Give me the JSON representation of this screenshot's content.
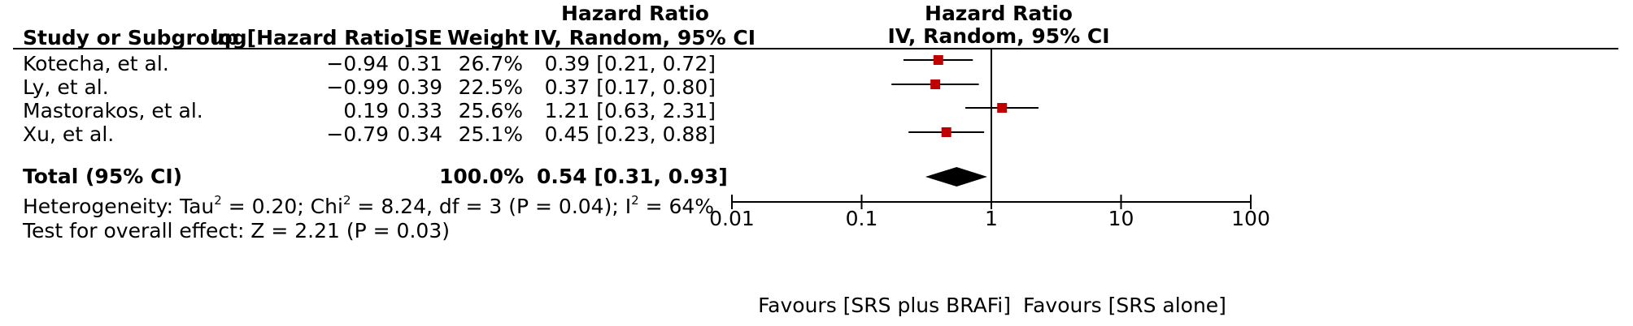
{
  "table": {
    "header_group": "Hazard Ratio",
    "columns": [
      "Study or Subgroup",
      "log[Hazard Ratio]",
      "SE",
      "Weight",
      "IV, Random, 95% CI"
    ],
    "rows": [
      {
        "study": "Kotecha, et al.",
        "loghr": "−0.94",
        "se": "0.31",
        "weight": "26.7%",
        "ci": "0.39 [0.21, 0.72]"
      },
      {
        "study": "Ly, et al.",
        "loghr": "−0.99",
        "se": "0.39",
        "weight": "22.5%",
        "ci": "0.37 [0.17, 0.80]"
      },
      {
        "study": "Mastorakos, et al.",
        "loghr": "0.19",
        "se": "0.33",
        "weight": "25.6%",
        "ci": "1.21 [0.63, 2.31]"
      },
      {
        "study": "Xu, et al.",
        "loghr": "−0.79",
        "se": "0.34",
        "weight": "25.1%",
        "ci": "0.45 [0.23, 0.88]"
      }
    ],
    "total": {
      "label": "Total (95% CI)",
      "weight": "100.0%",
      "ci": "0.54 [0.31, 0.93]"
    },
    "heterogeneity": {
      "prefix": "Heterogeneity: Tau",
      "sup1": "2",
      "mid": " = 0.20; Chi",
      "sup2": "2",
      "mid2": " = 8.24, df = 3 (P = 0.04); I",
      "sup3": "2",
      "suffix": " = 64%"
    },
    "overall_effect": "Test for overall effect: Z = 2.21 (P = 0.03)"
  },
  "chart_data": {
    "type": "forest",
    "title": "Hazard Ratio",
    "subtitle": "IV, Random, 95% CI",
    "x_scale": "log",
    "xlim": [
      0.01,
      100
    ],
    "ticks": [
      {
        "value": 0.01,
        "label": "0.01"
      },
      {
        "value": 0.1,
        "label": "0.1"
      },
      {
        "value": 1,
        "label": "1"
      },
      {
        "value": 10,
        "label": "10"
      },
      {
        "value": 100,
        "label": "100"
      }
    ],
    "favours_left": "Favours [SRS plus BRAFi]",
    "favours_right": "Favours [SRS alone]",
    "studies": [
      {
        "name": "Kotecha, et al.",
        "hr": 0.39,
        "lo": 0.21,
        "hi": 0.72,
        "weight": 26.7
      },
      {
        "name": "Ly, et al.",
        "hr": 0.37,
        "lo": 0.17,
        "hi": 0.8,
        "weight": 22.5
      },
      {
        "name": "Mastorakos, et al.",
        "hr": 1.21,
        "lo": 0.63,
        "hi": 2.31,
        "weight": 25.6
      },
      {
        "name": "Xu, et al.",
        "hr": 0.45,
        "lo": 0.23,
        "hi": 0.88,
        "weight": 25.1
      }
    ],
    "pooled": {
      "hr": 0.54,
      "lo": 0.31,
      "hi": 0.93
    },
    "colors": {
      "marker": "#c00000",
      "line": "#000000",
      "diamond": "#000000"
    }
  }
}
